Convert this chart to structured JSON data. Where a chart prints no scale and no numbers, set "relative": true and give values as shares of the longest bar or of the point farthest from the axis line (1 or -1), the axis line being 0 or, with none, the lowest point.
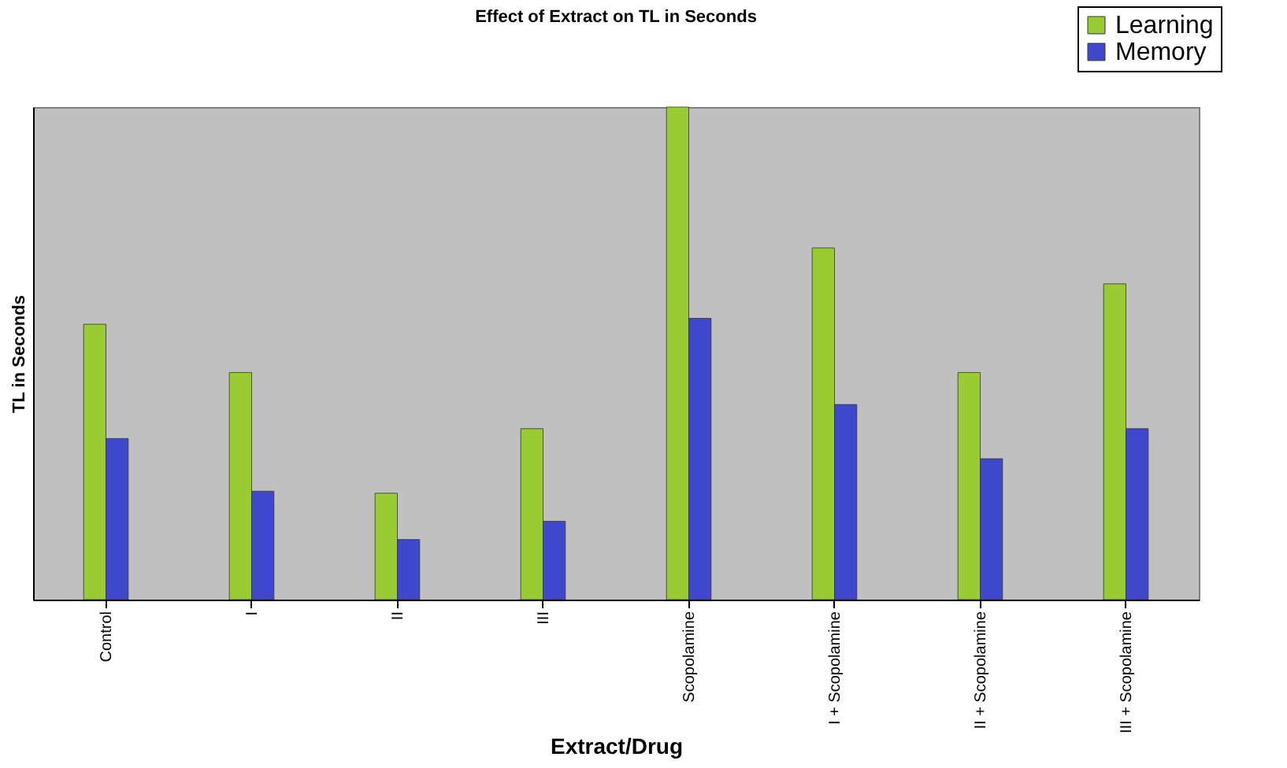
{
  "chart_data": {
    "type": "bar",
    "title": "Effect of Extract on TL in Seconds",
    "xlabel": "Extract/Drug",
    "ylabel": "TL in Seconds",
    "relative": true,
    "legend": "top right",
    "grid": false,
    "categories": [
      "Control",
      "I",
      "II",
      "III",
      "Scopolamine",
      "I + Scopolamine",
      "II + Scopolamine",
      "III + Scopolamine"
    ],
    "series": [
      {
        "name": "Learning",
        "color": "#99cc33",
        "values": [
          0.559,
          0.461,
          0.216,
          0.347,
          1,
          0.714,
          0.461,
          0.641
        ]
      },
      {
        "name": "Memory",
        "color": "#3f48cc",
        "values": [
          0.327,
          0.22,
          0.122,
          0.159,
          0.571,
          0.396,
          0.286,
          0.347
        ]
      }
    ]
  }
}
